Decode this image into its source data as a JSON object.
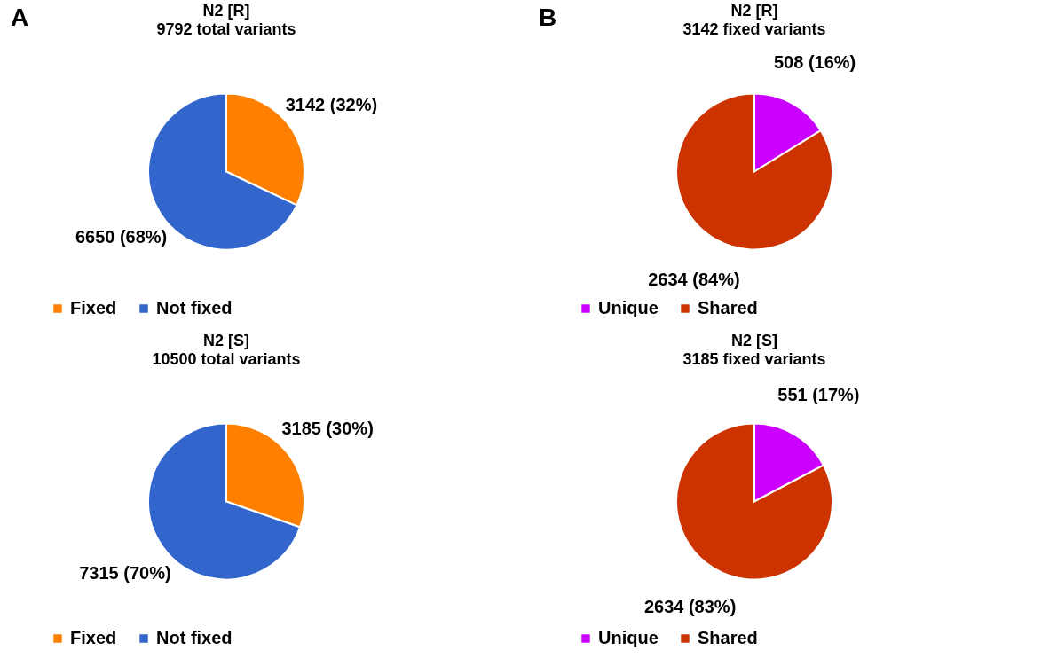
{
  "chart_data": [
    {
      "type": "pie",
      "title": "N2 [R]",
      "subtitle": "9792 total variants",
      "annotations": [
        "A"
      ],
      "categories": [
        "Fixed",
        "Not fixed"
      ],
      "values": [
        3142,
        6650
      ],
      "colors": [
        "#ff8000",
        "#3366cc"
      ],
      "value_labels": [
        "3142 (32%)",
        "6650 (68%)"
      ],
      "legend": "bottom"
    },
    {
      "type": "pie",
      "title": "N2 [R]",
      "subtitle": "3142 fixed variants",
      "annotations": [
        "B"
      ],
      "categories": [
        "Unique",
        "Shared"
      ],
      "values": [
        508,
        2634
      ],
      "colors": [
        "#cc00ff",
        "#cc3300"
      ],
      "value_labels": [
        "508 (16%)",
        "2634 (84%)"
      ],
      "legend": "bottom"
    },
    {
      "type": "pie",
      "title": "N2 [S]",
      "subtitle": "10500 total variants",
      "categories": [
        "Fixed",
        "Not fixed"
      ],
      "values": [
        3185,
        7315
      ],
      "colors": [
        "#ff8000",
        "#3366cc"
      ],
      "value_labels": [
        "3185 (30%)",
        "7315 (70%)"
      ],
      "legend": "bottom"
    },
    {
      "type": "pie",
      "title": "N2 [S]",
      "subtitle": "3185 fixed variants",
      "categories": [
        "Unique",
        "Shared"
      ],
      "values": [
        551,
        2634
      ],
      "colors": [
        "#cc00ff",
        "#cc3300"
      ],
      "value_labels": [
        "551 (17%)",
        "2634 (83%)"
      ],
      "legend": "bottom"
    }
  ]
}
